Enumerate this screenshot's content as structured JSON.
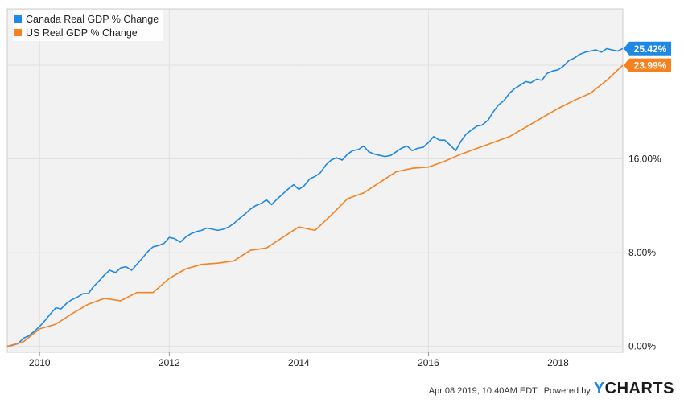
{
  "chart_data": {
    "type": "line",
    "ylim": [
      -0.5,
      28.8
    ],
    "xlim": [
      2009.5,
      2019.0
    ],
    "x_ticks": [
      {
        "value": 2010,
        "label": "2010"
      },
      {
        "value": 2012,
        "label": "2012"
      },
      {
        "value": 2014,
        "label": "2014"
      },
      {
        "value": 2016,
        "label": "2016"
      },
      {
        "value": 2018,
        "label": "2018"
      }
    ],
    "y_ticks": [
      {
        "value": 0,
        "label": "0.00%"
      },
      {
        "value": 8,
        "label": "8.00%"
      },
      {
        "value": 16,
        "label": "16.00%"
      }
    ],
    "y_gridlines": [
      0,
      8,
      16,
      24
    ],
    "grid": true,
    "legend_position": "top-left",
    "series": [
      {
        "name": "Canada Real GDP % Change",
        "color": "#1e88e5",
        "end_label": "25.42%",
        "points": [
          [
            2009.5,
            0.0
          ],
          [
            2009.58,
            0.1
          ],
          [
            2009.67,
            0.25
          ],
          [
            2009.75,
            0.7
          ],
          [
            2009.83,
            0.9
          ],
          [
            2009.92,
            1.3
          ],
          [
            2010.0,
            1.7
          ],
          [
            2010.08,
            2.2
          ],
          [
            2010.17,
            2.8
          ],
          [
            2010.25,
            3.3
          ],
          [
            2010.33,
            3.2
          ],
          [
            2010.42,
            3.7
          ],
          [
            2010.5,
            4.0
          ],
          [
            2010.58,
            4.2
          ],
          [
            2010.67,
            4.5
          ],
          [
            2010.75,
            4.5
          ],
          [
            2010.83,
            5.1
          ],
          [
            2010.92,
            5.6
          ],
          [
            2011.0,
            6.1
          ],
          [
            2011.08,
            6.5
          ],
          [
            2011.17,
            6.3
          ],
          [
            2011.25,
            6.7
          ],
          [
            2011.33,
            6.8
          ],
          [
            2011.42,
            6.5
          ],
          [
            2011.5,
            7.0
          ],
          [
            2011.58,
            7.5
          ],
          [
            2011.67,
            8.1
          ],
          [
            2011.75,
            8.5
          ],
          [
            2011.83,
            8.6
          ],
          [
            2011.92,
            8.8
          ],
          [
            2012.0,
            9.3
          ],
          [
            2012.08,
            9.2
          ],
          [
            2012.17,
            8.9
          ],
          [
            2012.25,
            9.3
          ],
          [
            2012.33,
            9.6
          ],
          [
            2012.42,
            9.8
          ],
          [
            2012.5,
            9.9
          ],
          [
            2012.58,
            10.1
          ],
          [
            2012.67,
            10.0
          ],
          [
            2012.75,
            9.9
          ],
          [
            2012.83,
            10.0
          ],
          [
            2012.92,
            10.2
          ],
          [
            2013.0,
            10.5
          ],
          [
            2013.08,
            10.9
          ],
          [
            2013.17,
            11.3
          ],
          [
            2013.25,
            11.7
          ],
          [
            2013.33,
            12.0
          ],
          [
            2013.42,
            12.2
          ],
          [
            2013.5,
            12.5
          ],
          [
            2013.58,
            12.1
          ],
          [
            2013.67,
            12.6
          ],
          [
            2013.75,
            13.0
          ],
          [
            2013.83,
            13.4
          ],
          [
            2013.92,
            13.8
          ],
          [
            2014.0,
            13.4
          ],
          [
            2014.08,
            13.7
          ],
          [
            2014.17,
            14.3
          ],
          [
            2014.25,
            14.5
          ],
          [
            2014.33,
            14.8
          ],
          [
            2014.42,
            15.5
          ],
          [
            2014.5,
            15.9
          ],
          [
            2014.58,
            16.1
          ],
          [
            2014.67,
            15.9
          ],
          [
            2014.75,
            16.4
          ],
          [
            2014.83,
            16.7
          ],
          [
            2014.92,
            16.8
          ],
          [
            2015.0,
            17.1
          ],
          [
            2015.08,
            16.6
          ],
          [
            2015.17,
            16.4
          ],
          [
            2015.25,
            16.3
          ],
          [
            2015.33,
            16.2
          ],
          [
            2015.42,
            16.3
          ],
          [
            2015.5,
            16.6
          ],
          [
            2015.58,
            16.9
          ],
          [
            2015.67,
            17.1
          ],
          [
            2015.75,
            16.7
          ],
          [
            2015.83,
            16.9
          ],
          [
            2015.92,
            17.0
          ],
          [
            2016.0,
            17.4
          ],
          [
            2016.08,
            17.9
          ],
          [
            2016.17,
            17.6
          ],
          [
            2016.25,
            17.6
          ],
          [
            2016.33,
            17.2
          ],
          [
            2016.42,
            16.7
          ],
          [
            2016.5,
            17.5
          ],
          [
            2016.58,
            18.1
          ],
          [
            2016.67,
            18.5
          ],
          [
            2016.75,
            18.8
          ],
          [
            2016.83,
            18.9
          ],
          [
            2016.92,
            19.3
          ],
          [
            2017.0,
            20.0
          ],
          [
            2017.08,
            20.6
          ],
          [
            2017.17,
            21.0
          ],
          [
            2017.25,
            21.6
          ],
          [
            2017.33,
            22.0
          ],
          [
            2017.42,
            22.3
          ],
          [
            2017.5,
            22.6
          ],
          [
            2017.58,
            22.5
          ],
          [
            2017.67,
            22.8
          ],
          [
            2017.75,
            22.7
          ],
          [
            2017.83,
            23.3
          ],
          [
            2017.92,
            23.5
          ],
          [
            2018.0,
            23.6
          ],
          [
            2018.08,
            23.9
          ],
          [
            2018.17,
            24.4
          ],
          [
            2018.25,
            24.6
          ],
          [
            2018.33,
            24.9
          ],
          [
            2018.42,
            25.1
          ],
          [
            2018.5,
            25.2
          ],
          [
            2018.58,
            25.3
          ],
          [
            2018.67,
            25.1
          ],
          [
            2018.75,
            25.4
          ],
          [
            2018.83,
            25.3
          ],
          [
            2018.92,
            25.2
          ],
          [
            2019.0,
            25.42
          ]
        ]
      },
      {
        "name": "US Real GDP % Change",
        "color": "#f5821f",
        "end_label": "23.99%",
        "points": [
          [
            2009.5,
            0.0
          ],
          [
            2009.75,
            0.4
          ],
          [
            2010.0,
            1.5
          ],
          [
            2010.25,
            1.9
          ],
          [
            2010.5,
            2.8
          ],
          [
            2010.75,
            3.6
          ],
          [
            2011.0,
            4.1
          ],
          [
            2011.25,
            3.9
          ],
          [
            2011.5,
            4.6
          ],
          [
            2011.75,
            4.6
          ],
          [
            2012.0,
            5.8
          ],
          [
            2012.25,
            6.6
          ],
          [
            2012.5,
            7.0
          ],
          [
            2012.75,
            7.1
          ],
          [
            2013.0,
            7.3
          ],
          [
            2013.25,
            8.2
          ],
          [
            2013.5,
            8.4
          ],
          [
            2013.75,
            9.3
          ],
          [
            2014.0,
            10.2
          ],
          [
            2014.25,
            9.9
          ],
          [
            2014.5,
            11.2
          ],
          [
            2014.75,
            12.6
          ],
          [
            2015.0,
            13.1
          ],
          [
            2015.25,
            14.0
          ],
          [
            2015.5,
            14.9
          ],
          [
            2015.75,
            15.2
          ],
          [
            2016.0,
            15.3
          ],
          [
            2016.25,
            15.8
          ],
          [
            2016.5,
            16.4
          ],
          [
            2016.75,
            16.9
          ],
          [
            2017.0,
            17.4
          ],
          [
            2017.25,
            17.9
          ],
          [
            2017.5,
            18.7
          ],
          [
            2017.75,
            19.5
          ],
          [
            2018.0,
            20.3
          ],
          [
            2018.25,
            21.0
          ],
          [
            2018.5,
            21.6
          ],
          [
            2018.75,
            22.7
          ],
          [
            2019.0,
            23.99
          ]
        ]
      }
    ]
  },
  "footer": {
    "timestamp": "Apr 08 2019, 10:40AM EDT.",
    "powered_by": "Powered by",
    "brand_first": "Y",
    "brand_rest": "CHARTS"
  },
  "colors": {
    "plot_background": "#f2f2f2",
    "grid": "#e0e0e0",
    "axis_text": "#222222"
  }
}
